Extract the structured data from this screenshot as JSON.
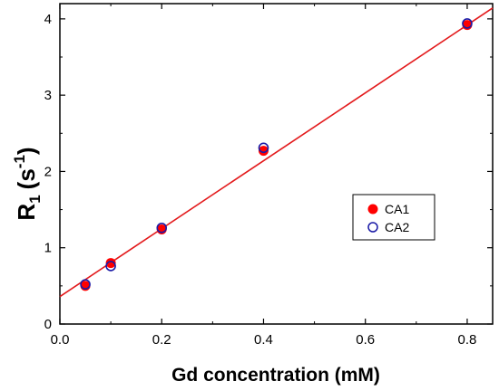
{
  "chart_data": {
    "type": "scatter",
    "title": "",
    "xlabel": "Gd concentration (mM)",
    "ylabel": {
      "base": "R",
      "subscript": "1",
      "unit_open": "(s",
      "superscript": "-1",
      "unit_close": ")"
    },
    "xlim": [
      0.0,
      0.85
    ],
    "ylim": [
      0,
      4.2
    ],
    "x_ticks": [
      0.0,
      0.2,
      0.4,
      0.6,
      0.8
    ],
    "x_tick_labels": [
      "0.0",
      "0.2",
      "0.4",
      "0.6",
      "0.8"
    ],
    "y_ticks": [
      0,
      1,
      2,
      3,
      4
    ],
    "y_tick_labels": [
      "0",
      "1",
      "2",
      "3",
      "4"
    ],
    "grid": false,
    "legend_position": "middle-right",
    "series": [
      {
        "name": "CA1",
        "marker": "filled-circle",
        "color": "#ff0000",
        "x": [
          0.05,
          0.1,
          0.2,
          0.4,
          0.8
        ],
        "y": [
          0.5,
          0.8,
          1.24,
          2.27,
          3.92
        ]
      },
      {
        "name": "CA2",
        "marker": "open-circle",
        "color": "#1a1aa6",
        "x": [
          0.05,
          0.1,
          0.2,
          0.4,
          0.8
        ],
        "y": [
          0.52,
          0.76,
          1.26,
          2.31,
          3.94
        ]
      }
    ],
    "fit_line": {
      "color": "#e31a1c",
      "slope": 4.45,
      "intercept": 0.36
    }
  }
}
